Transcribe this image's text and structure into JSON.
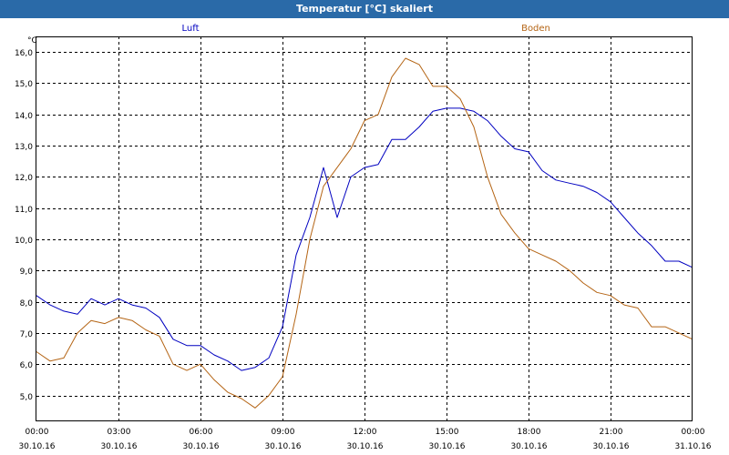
{
  "window": {
    "title": "Temperatur [°C] skaliert"
  },
  "colors": {
    "title_bar": "#2a6aa8",
    "luft": "#0000c0",
    "boden": "#b46414",
    "grid": "#000000"
  },
  "chart_data": {
    "type": "line",
    "title": "Temperatur [°C] skaliert",
    "ylabel": "°C",
    "xlabel": "",
    "ylim": [
      4.2,
      16.5
    ],
    "yticks": [
      "16,0",
      "15,0",
      "14,0",
      "13,0",
      "12,0",
      "11,0",
      "10,0",
      "9,0",
      "8,0",
      "7,0",
      "6,0",
      "5,0"
    ],
    "ytick_values": [
      16,
      15,
      14,
      13,
      12,
      11,
      10,
      9,
      8,
      7,
      6,
      5
    ],
    "xlim": [
      0,
      24
    ],
    "xticks": [
      {
        "time": "00:00",
        "date": "30.10.16"
      },
      {
        "time": "03:00",
        "date": "30.10.16"
      },
      {
        "time": "06:00",
        "date": "30.10.16"
      },
      {
        "time": "09:00",
        "date": "30.10.16"
      },
      {
        "time": "12:00",
        "date": "30.10.16"
      },
      {
        "time": "15:00",
        "date": "30.10.16"
      },
      {
        "time": "18:00",
        "date": "30.10.16"
      },
      {
        "time": "21:00",
        "date": "30.10.16"
      },
      {
        "time": "00:00",
        "date": "31.10.16"
      }
    ],
    "grid": true,
    "series": [
      {
        "name": "Luft",
        "x": [
          0,
          0.5,
          1,
          1.5,
          2,
          2.5,
          3,
          3.5,
          4,
          4.5,
          5,
          5.5,
          6,
          6.5,
          7,
          7.5,
          8,
          8.5,
          9,
          9.5,
          10,
          10.5,
          11,
          11.5,
          12,
          12.5,
          13,
          13.5,
          14,
          14.5,
          15,
          15.5,
          16,
          16.5,
          17,
          17.5,
          18,
          18.5,
          19,
          19.5,
          20,
          20.5,
          21,
          21.5,
          22,
          22.5,
          23,
          23.5,
          24
        ],
        "values": [
          8.2,
          7.9,
          7.7,
          7.6,
          8.1,
          7.9,
          8.1,
          7.9,
          7.8,
          7.5,
          6.8,
          6.6,
          6.6,
          6.3,
          6.1,
          5.8,
          5.9,
          6.2,
          7.2,
          9.5,
          10.7,
          12.3,
          10.7,
          12.0,
          12.3,
          12.4,
          13.2,
          13.2,
          13.6,
          14.1,
          14.2,
          14.2,
          14.1,
          13.8,
          13.3,
          12.9,
          12.8,
          12.2,
          11.9,
          11.8,
          11.7,
          11.5,
          11.2,
          10.7,
          10.2,
          9.8,
          9.3,
          9.3,
          9.1
        ]
      },
      {
        "name": "Boden",
        "x": [
          0,
          0.5,
          1,
          1.5,
          2,
          2.5,
          3,
          3.5,
          4,
          4.5,
          5,
          5.5,
          6,
          6.5,
          7,
          7.5,
          8,
          8.5,
          9,
          9.5,
          10,
          10.5,
          11,
          11.5,
          12,
          12.5,
          13,
          13.5,
          14,
          14.5,
          15,
          15.5,
          16,
          16.5,
          17,
          17.5,
          18,
          18.5,
          19,
          19.5,
          20,
          20.5,
          21,
          21.5,
          22,
          22.5,
          23,
          23.5,
          24
        ],
        "values": [
          6.4,
          6.1,
          6.2,
          7.0,
          7.4,
          7.3,
          7.5,
          7.4,
          7.1,
          6.9,
          6.0,
          5.8,
          6.0,
          5.5,
          5.1,
          4.9,
          4.6,
          5.0,
          5.6,
          7.6,
          10.0,
          11.7,
          12.3,
          12.9,
          13.8,
          14.0,
          15.2,
          15.8,
          15.6,
          14.9,
          14.9,
          14.5,
          13.6,
          12.0,
          10.8,
          10.2,
          9.7,
          9.5,
          9.3,
          9.0,
          8.6,
          8.3,
          8.2,
          7.9,
          7.8,
          7.2,
          7.2,
          7.0,
          6.8
        ]
      }
    ]
  }
}
